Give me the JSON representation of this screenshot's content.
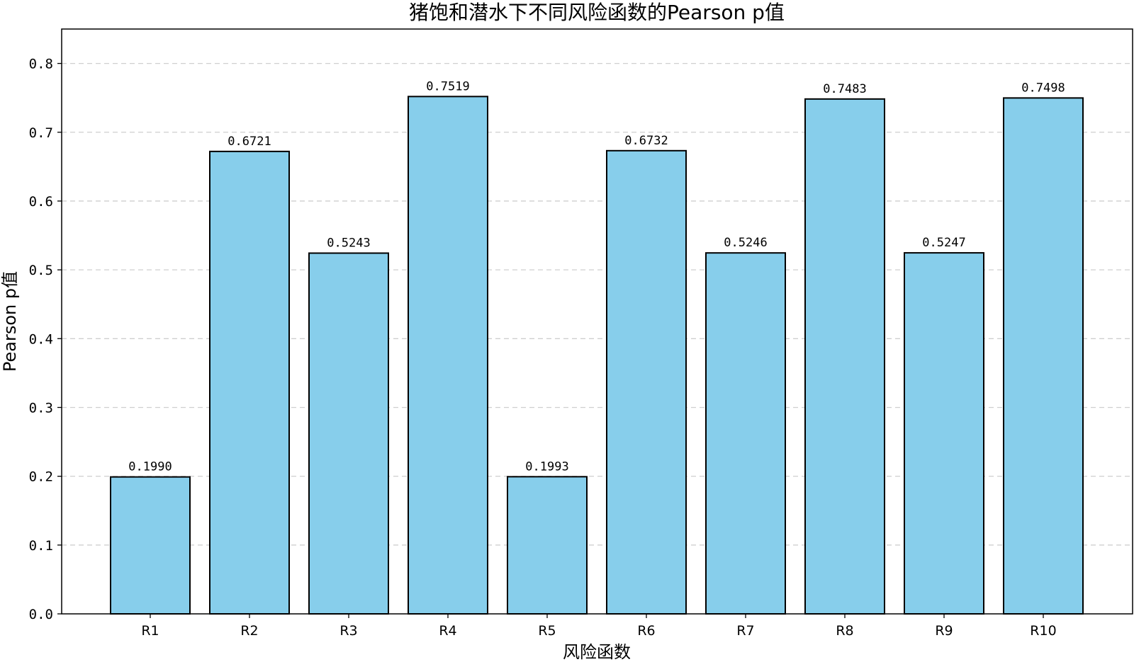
{
  "chart_data": {
    "type": "bar",
    "title": "猪饱和潜水下不同风险函数的Pearson p值",
    "xlabel": "风险函数",
    "ylabel": "Pearson p值",
    "categories": [
      "R1",
      "R2",
      "R3",
      "R4",
      "R5",
      "R6",
      "R7",
      "R8",
      "R9",
      "R10"
    ],
    "values": [
      0.199,
      0.6721,
      0.5243,
      0.7519,
      0.1993,
      0.6732,
      0.5246,
      0.7483,
      0.5247,
      0.7498
    ],
    "value_labels": [
      "0.1990",
      "0.6721",
      "0.5243",
      "0.7519",
      "0.1993",
      "0.6732",
      "0.5246",
      "0.7483",
      "0.5247",
      "0.7498"
    ],
    "ylim": [
      0,
      0.85
    ],
    "yticks": [
      0.0,
      0.1,
      0.2,
      0.3,
      0.4,
      0.5,
      0.6,
      0.7,
      0.8
    ],
    "ytick_labels": [
      "0.0",
      "0.1",
      "0.2",
      "0.3",
      "0.4",
      "0.5",
      "0.6",
      "0.7",
      "0.8"
    ],
    "grid": "y dashed",
    "bar_color": "#87CEEB",
    "edge_color": "#000000"
  }
}
